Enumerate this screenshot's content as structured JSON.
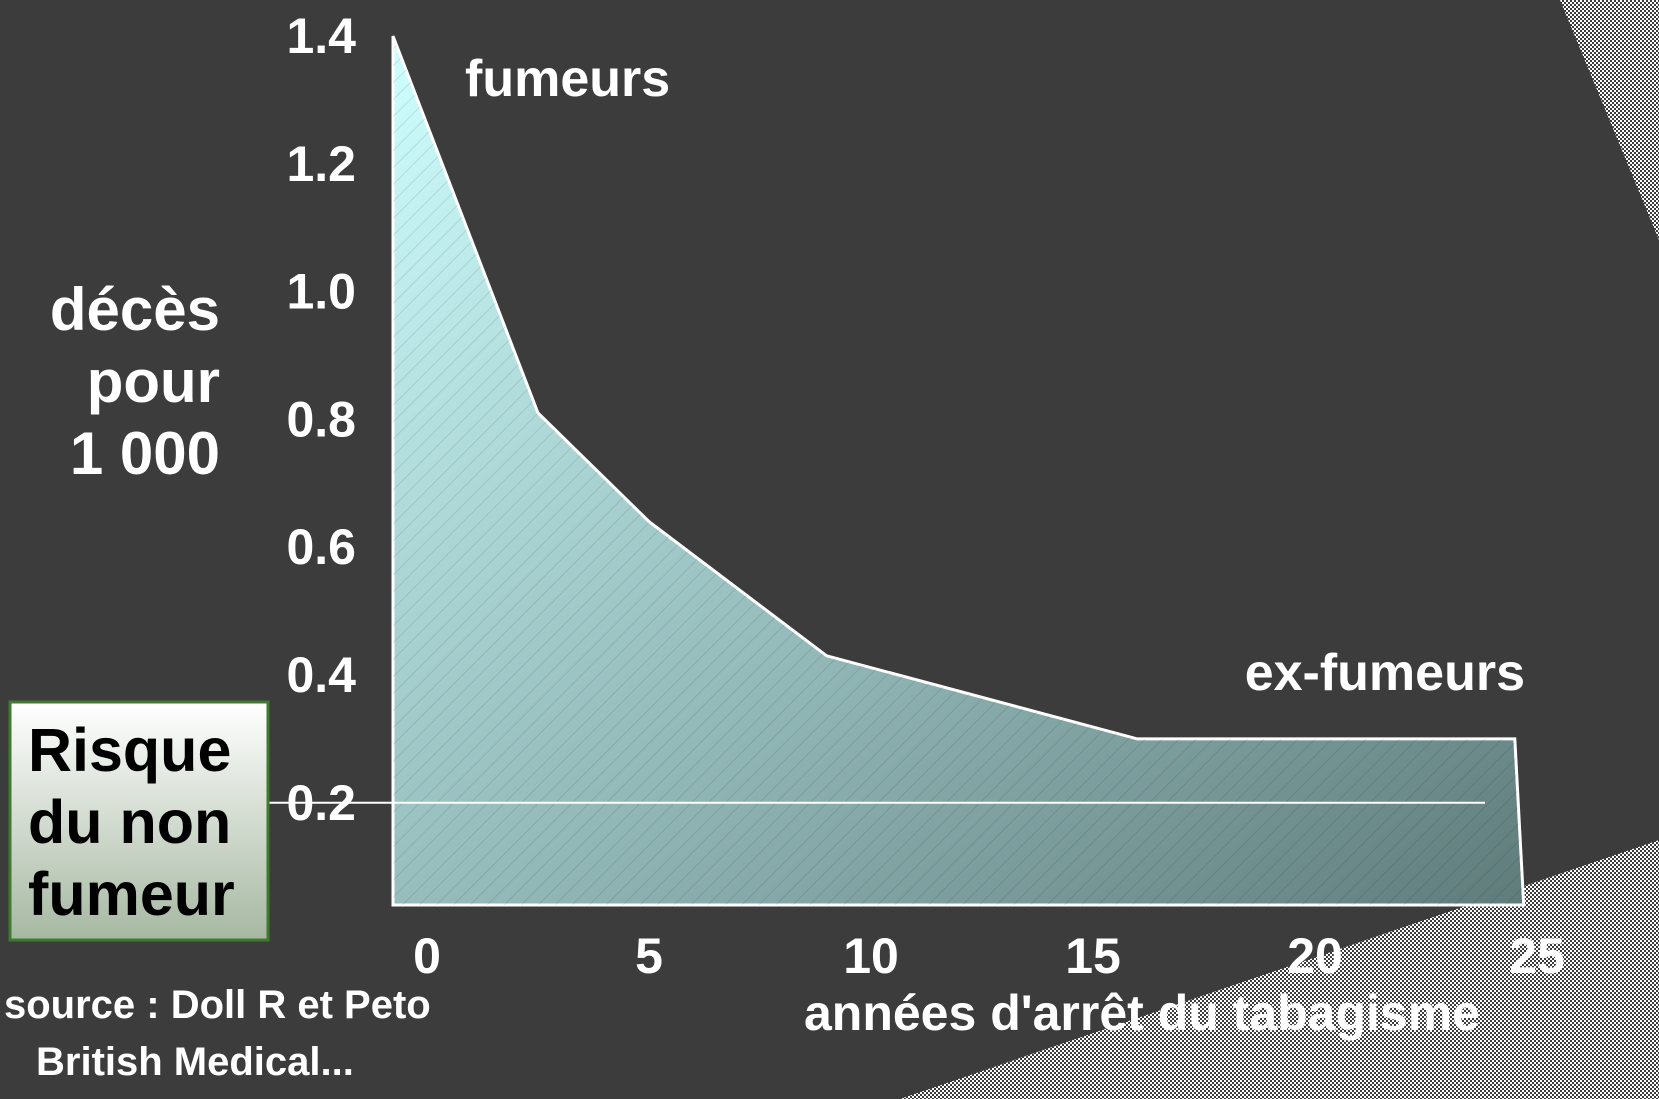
{
  "chart_data": {
    "type": "area",
    "x": [
      0,
      2.5,
      5,
      9,
      16,
      24.5,
      24.7
    ],
    "values": [
      1.4,
      0.81,
      0.64,
      0.43,
      0.3,
      0.3,
      0.04
    ],
    "x_ticks": [
      "0",
      "5",
      "10",
      "15",
      "20",
      "25"
    ],
    "y_ticks": [
      "1.4",
      "1.2",
      "1.0",
      "0.8",
      "0.6",
      "0.4",
      "0.2"
    ],
    "xlim": [
      0,
      25
    ],
    "ylim": [
      0.04,
      1.4
    ],
    "reference_line": 0.2,
    "ylabel": [
      "décès",
      "pour",
      "1 000"
    ],
    "xlabel": "années d'arrêt du tabagisme",
    "annotations": {
      "smokers": "fumeurs",
      "ex_smokers": "ex-fumeurs"
    },
    "reference_box": [
      "Risque",
      "du non",
      "fumeur"
    ],
    "source": [
      "source : Doll R et Peto",
      "British Medical..."
    ],
    "grid": false,
    "colors": {
      "fill_top": "#cfffff",
      "fill_bottom": "#5f7c7b",
      "background": "#3c3c3c",
      "box_top": "#ffffff",
      "box_bottom": "#a6b8a2",
      "box_border": "#3f7a2e"
    }
  }
}
